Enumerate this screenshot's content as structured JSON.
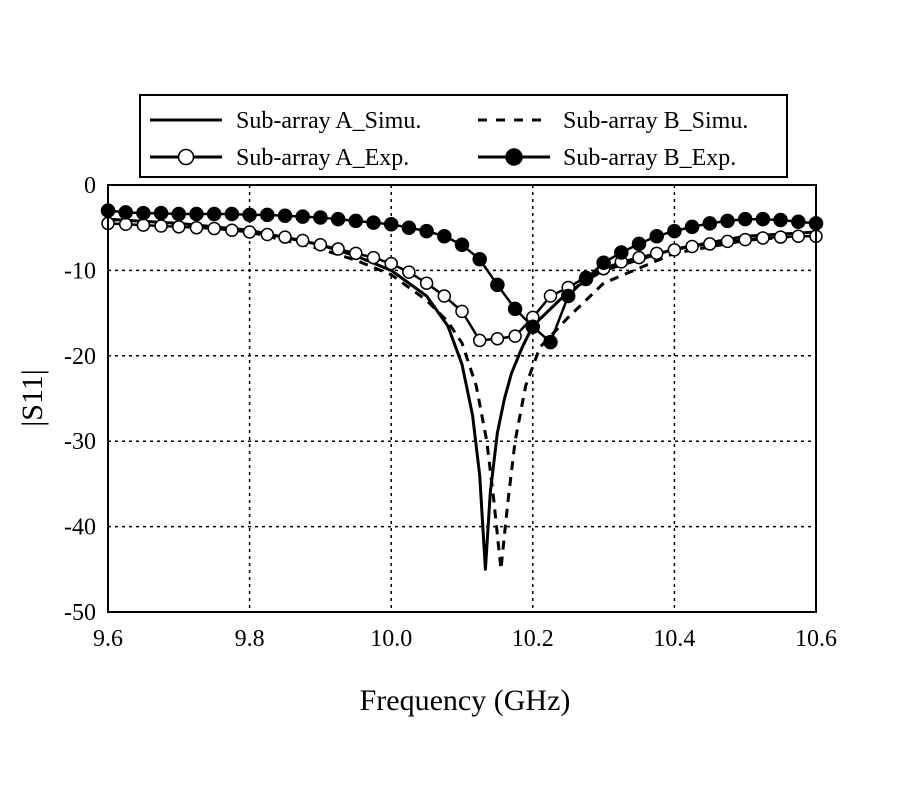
{
  "chart_data": {
    "type": "line",
    "title": "",
    "xlabel": "Frequency (GHz)",
    "ylabel": "|S11|",
    "xlim": [
      9.6,
      10.6
    ],
    "ylim": [
      -50,
      0
    ],
    "xticks": [
      9.6,
      9.8,
      10.0,
      10.2,
      10.4,
      10.6
    ],
    "xtick_labels": [
      "9.6",
      "9.8",
      "10.0",
      "10.2",
      "10.4",
      "10.6"
    ],
    "yticks": [
      0,
      -10,
      -20,
      -30,
      -40,
      -50
    ],
    "ytick_labels": [
      "0",
      "-10",
      "-20",
      "-30",
      "-40",
      "-50"
    ],
    "grid": true,
    "legend_position": "top",
    "series": [
      {
        "name": "Sub-array A_Simu.",
        "style": "solid",
        "marker": "none",
        "x": [
          9.6,
          9.7,
          9.8,
          9.9,
          9.95,
          10.0,
          10.05,
          10.08,
          10.1,
          10.115,
          10.125,
          10.133,
          10.14,
          10.15,
          10.16,
          10.17,
          10.185,
          10.2,
          10.25,
          10.3,
          10.4,
          10.5,
          10.6
        ],
        "y": [
          -4.0,
          -4.5,
          -5.3,
          -7.0,
          -8.3,
          -10.0,
          -13.0,
          -16.5,
          -21.0,
          -27.0,
          -34.0,
          -45.0,
          -36.0,
          -29.0,
          -25.0,
          -22.0,
          -19.0,
          -16.5,
          -12.5,
          -10.0,
          -7.5,
          -6.0,
          -5.5
        ]
      },
      {
        "name": "Sub-array B_Simu.",
        "style": "dashed",
        "marker": "none",
        "x": [
          9.6,
          9.7,
          9.8,
          9.9,
          9.95,
          10.0,
          10.05,
          10.08,
          10.1,
          10.12,
          10.135,
          10.145,
          10.155,
          10.165,
          10.175,
          10.19,
          10.21,
          10.25,
          10.3,
          10.4,
          10.5,
          10.6
        ],
        "y": [
          -4.0,
          -4.6,
          -5.5,
          -7.5,
          -8.8,
          -10.5,
          -13.5,
          -16.0,
          -18.5,
          -23.5,
          -30.0,
          -37.0,
          -45.0,
          -37.0,
          -30.0,
          -23.5,
          -19.0,
          -15.5,
          -11.5,
          -8.0,
          -6.5,
          -5.8
        ]
      },
      {
        "name": "Sub-array A_Exp.",
        "style": "solid",
        "marker": "open-circle",
        "x_start": 9.6,
        "x_step": 0.025,
        "y": [
          -4.5,
          -4.6,
          -4.7,
          -4.8,
          -4.9,
          -5.0,
          -5.1,
          -5.3,
          -5.5,
          -5.8,
          -6.1,
          -6.5,
          -7.0,
          -7.5,
          -8.0,
          -8.5,
          -9.2,
          -10.2,
          -11.5,
          -13.0,
          -14.8,
          -18.2,
          -18.0,
          -17.7,
          -15.5,
          -13.0,
          -12.0,
          -10.8,
          -9.8,
          -9.0,
          -8.5,
          -8.0,
          -7.6,
          -7.2,
          -6.9,
          -6.6,
          -6.4,
          -6.2,
          -6.1,
          -6.0,
          -6.0
        ]
      },
      {
        "name": "Sub-array B_Exp.",
        "style": "solid",
        "marker": "filled-circle",
        "x_start": 9.6,
        "x_step": 0.025,
        "y": [
          -3.0,
          -3.2,
          -3.3,
          -3.3,
          -3.4,
          -3.4,
          -3.4,
          -3.4,
          -3.5,
          -3.5,
          -3.6,
          -3.7,
          -3.8,
          -4.0,
          -4.2,
          -4.4,
          -4.6,
          -5.0,
          -5.4,
          -6.0,
          -7.0,
          -8.7,
          -11.7,
          -14.5,
          -16.6,
          -18.4,
          -13.0,
          -11.0,
          -9.1,
          -7.9,
          -6.9,
          -6.0,
          -5.4,
          -4.9,
          -4.5,
          -4.2,
          -4.0,
          -4.0,
          -4.1,
          -4.3,
          -4.5
        ]
      }
    ]
  }
}
